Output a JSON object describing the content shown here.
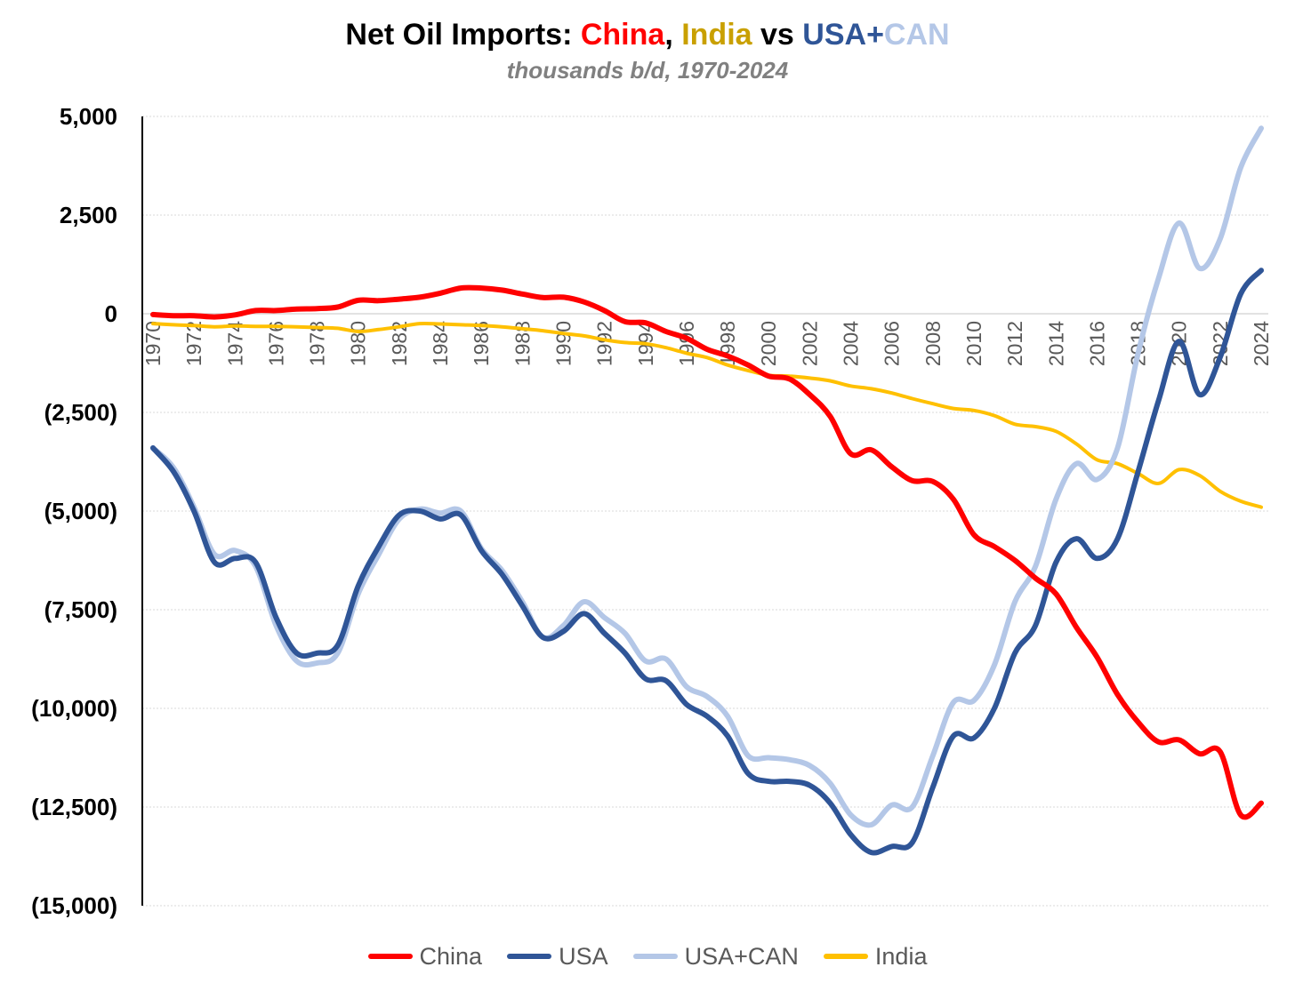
{
  "title": {
    "part1": "Net Oil Imports: ",
    "china": "China",
    "comma": ", ",
    "india": "India",
    "vs": " vs ",
    "usa": "USA+",
    "can": "CAN"
  },
  "colors": {
    "china": "#ff0000",
    "india": "#c9a000",
    "usa": "#2f5597",
    "can": "#b4c7e7",
    "india_line": "#ffc000"
  },
  "chart_data": {
    "type": "line",
    "title": "Net Oil Imports: China, India vs USA+CAN",
    "subtitle": "thousands b/d, 1970-2024",
    "xlabel": "",
    "ylabel": "",
    "ylim": [
      -15000,
      5000
    ],
    "yticks": [
      5000,
      2500,
      0,
      -2500,
      -5000,
      -7500,
      -10000,
      -12500,
      -15000
    ],
    "ytick_labels": [
      "5,000",
      "2,500",
      "0",
      "(2,500)",
      "(5,000)",
      "(7,500)",
      "(10,000)",
      "(12,500)",
      "(15,000)"
    ],
    "x_tick_labels": [
      "1970",
      "1972",
      "1974",
      "1976",
      "1978",
      "1980",
      "1982",
      "1984",
      "1986",
      "1988",
      "1990",
      "1992",
      "1994",
      "1996",
      "1998",
      "2000",
      "2002",
      "2004",
      "2006",
      "2008",
      "2010",
      "2012",
      "2014",
      "2016",
      "2018",
      "2020",
      "2022",
      "2024"
    ],
    "x": [
      1970,
      1971,
      1972,
      1973,
      1974,
      1975,
      1976,
      1977,
      1978,
      1979,
      1980,
      1981,
      1982,
      1983,
      1984,
      1985,
      1986,
      1987,
      1988,
      1989,
      1990,
      1991,
      1992,
      1993,
      1994,
      1995,
      1996,
      1997,
      1998,
      1999,
      2000,
      2001,
      2002,
      2003,
      2004,
      2005,
      2006,
      2007,
      2008,
      2009,
      2010,
      2011,
      2012,
      2013,
      2014,
      2015,
      2016,
      2017,
      2018,
      2019,
      2020,
      2021,
      2022,
      2023,
      2024
    ],
    "grid": true,
    "legend": "bottom",
    "series": [
      {
        "name": "China",
        "color": "#ff0000",
        "width": 6,
        "values": [
          -20,
          -50,
          -50,
          -80,
          -30,
          80,
          80,
          120,
          130,
          170,
          340,
          330,
          370,
          420,
          520,
          650,
          650,
          600,
          500,
          410,
          420,
          300,
          80,
          -200,
          -230,
          -450,
          -620,
          -900,
          -1070,
          -1300,
          -1580,
          -1650,
          -2050,
          -2600,
          -3550,
          -3450,
          -3880,
          -4230,
          -4250,
          -4700,
          -5600,
          -5900,
          -6250,
          -6700,
          -7100,
          -7950,
          -8700,
          -9650,
          -10350,
          -10850,
          -10800,
          -11150,
          -11100,
          -12700,
          -12400
        ]
      },
      {
        "name": "USA",
        "color": "#2f5597",
        "width": 6,
        "values": [
          -3400,
          -4000,
          -5000,
          -6300,
          -6200,
          -6300,
          -7700,
          -8600,
          -8600,
          -8400,
          -6900,
          -5900,
          -5100,
          -5000,
          -5200,
          -5100,
          -6000,
          -6600,
          -7400,
          -8200,
          -8050,
          -7600,
          -8100,
          -8600,
          -9250,
          -9300,
          -9900,
          -10200,
          -10700,
          -11650,
          -11850,
          -11850,
          -11950,
          -12400,
          -13200,
          -13650,
          -13500,
          -13400,
          -12000,
          -10700,
          -10750,
          -10000,
          -8600,
          -7900,
          -6300,
          -5700,
          -6200,
          -5700,
          -4000,
          -2200,
          -700,
          -2050,
          -1100,
          500,
          1100
        ]
      },
      {
        "name": "USA+CAN",
        "color": "#b4c7e7",
        "width": 6,
        "values": [
          -3400,
          -3900,
          -4900,
          -6100,
          -6000,
          -6400,
          -7900,
          -8800,
          -8850,
          -8600,
          -7100,
          -6100,
          -5200,
          -4950,
          -5050,
          -5000,
          -5950,
          -6500,
          -7300,
          -8200,
          -7900,
          -7300,
          -7700,
          -8100,
          -8800,
          -8750,
          -9450,
          -9700,
          -10200,
          -11200,
          -11250,
          -11300,
          -11450,
          -11900,
          -12700,
          -12950,
          -12450,
          -12500,
          -11200,
          -9850,
          -9800,
          -8900,
          -7300,
          -6400,
          -4700,
          -3800,
          -4200,
          -3400,
          -1000,
          900,
          2300,
          1150,
          1900,
          3700,
          4700
        ]
      },
      {
        "name": "India",
        "color": "#ffc000",
        "width": 4,
        "values": [
          -250,
          -280,
          -300,
          -330,
          -310,
          -320,
          -320,
          -330,
          -350,
          -370,
          -450,
          -400,
          -330,
          -250,
          -260,
          -280,
          -300,
          -330,
          -380,
          -430,
          -500,
          -560,
          -660,
          -730,
          -760,
          -860,
          -1000,
          -1110,
          -1300,
          -1440,
          -1560,
          -1580,
          -1630,
          -1700,
          -1830,
          -1900,
          -2010,
          -2150,
          -2280,
          -2400,
          -2450,
          -2580,
          -2800,
          -2860,
          -2980,
          -3300,
          -3700,
          -3800,
          -4050,
          -4300,
          -3950,
          -4100,
          -4500,
          -4750,
          -4900
        ]
      }
    ]
  }
}
